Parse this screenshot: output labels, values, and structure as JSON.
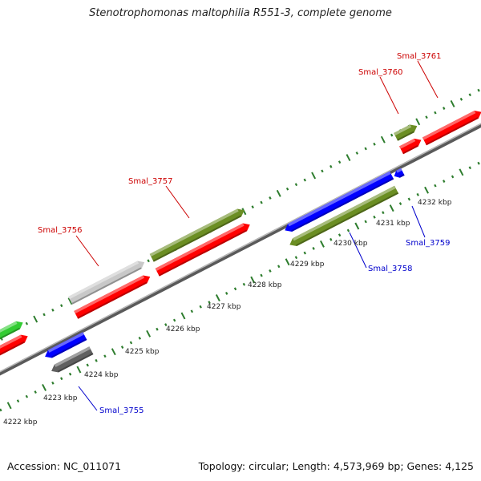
{
  "title": "Stenotrophomonas maltophilia R551-3, complete genome",
  "footer": {
    "accession": "Accession: NC_011071",
    "summary": "Topology: circular; Length: 4,573,969 bp; Genes: 4,125"
  },
  "colors": {
    "backbone": "#8a8a8a",
    "tick": "#2e7d2e",
    "label_forward": "#cc0000",
    "label_reverse": "#0000cc",
    "red": "#ff0000",
    "olive": "#6b8e23",
    "blue": "#0000ff",
    "gray_light": "#c8c8c8",
    "gray_dark": "#606060",
    "green": "#33cc33"
  },
  "scale_labels": [
    "4222 kbp",
    "4223 kbp",
    "4224 kbp",
    "4225 kbp",
    "4226 kbp",
    "4227 kbp",
    "4228 kbp",
    "4229 kbp",
    "4230 kbp",
    "4231 kbp",
    "4232 kbp"
  ],
  "gene_labels": [
    {
      "name": "Smal_3755",
      "strand": "reverse"
    },
    {
      "name": "Smal_3756",
      "strand": "forward"
    },
    {
      "name": "Smal_3757",
      "strand": "forward"
    },
    {
      "name": "Smal_3758",
      "strand": "reverse"
    },
    {
      "name": "Smal_3759",
      "strand": "reverse"
    },
    {
      "name": "Smal_3760",
      "strand": "forward"
    },
    {
      "name": "Smal_3761",
      "strand": "forward"
    }
  ]
}
